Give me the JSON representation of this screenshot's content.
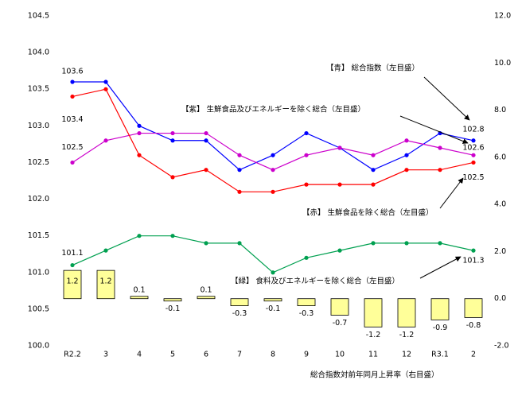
{
  "chart_data": {
    "type": "bar-line",
    "categories": [
      "R2.2",
      "3",
      "4",
      "5",
      "6",
      "7",
      "8",
      "9",
      "10",
      "11",
      "12",
      "R3.1",
      "2"
    ],
    "series": [
      {
        "name": "【青】 総合指数（左目盛）",
        "type": "line",
        "color": "#0000ff",
        "values": [
          103.6,
          103.6,
          103.0,
          102.8,
          102.8,
          102.4,
          102.6,
          102.9,
          102.7,
          102.4,
          102.6,
          102.9,
          102.8
        ]
      },
      {
        "name": "【紫】 生鮮食品及びエネルギーを除く総合（左目盛）",
        "type": "line",
        "color": "#cc00cc",
        "values": [
          102.5,
          102.8,
          102.9,
          102.9,
          102.9,
          102.6,
          102.4,
          102.6,
          102.7,
          102.6,
          102.8,
          102.7,
          102.6
        ]
      },
      {
        "name": "【赤】 生鮮食品を除く総合（左目盛）",
        "type": "line",
        "color": "#ff0000",
        "values": [
          103.4,
          103.5,
          102.6,
          102.3,
          102.4,
          102.1,
          102.1,
          102.2,
          102.2,
          102.2,
          102.4,
          102.4,
          102.5
        ]
      },
      {
        "name": "【緑】 食料及びエネルギーを除く総合（左目盛）",
        "type": "line",
        "color": "#00a050",
        "values": [
          101.1,
          101.3,
          101.5,
          101.5,
          101.4,
          101.4,
          101.0,
          101.2,
          101.3,
          101.4,
          101.4,
          101.4,
          101.3
        ]
      },
      {
        "name": "総合指数対前年同月上昇率（右目盛）",
        "type": "bar",
        "axis": "y2",
        "color": "#ffff99",
        "values": [
          1.2,
          1.2,
          0.1,
          -0.1,
          0.1,
          -0.3,
          -0.1,
          -0.3,
          -0.7,
          -1.2,
          -1.2,
          -0.9,
          -0.8
        ]
      }
    ],
    "ylim": [
      100.0,
      104.5
    ],
    "yticks": [
      {
        "value": 100,
        "label": "100.0"
      },
      100.5,
      {
        "value": 101,
        "label": "101.0"
      },
      101.5,
      {
        "value": 102,
        "label": "102.0"
      },
      102.5,
      {
        "value": 103,
        "label": "103.0"
      },
      103.5,
      {
        "value": 104,
        "label": "104.0"
      },
      104.5
    ],
    "y2lim": [
      -2.0,
      12.0
    ],
    "y2ticks": [
      {
        "value": -2,
        "label": "-2.0"
      },
      {
        "value": 0,
        "label": "0.0"
      },
      {
        "value": 2,
        "label": "2.0"
      },
      {
        "value": 4,
        "label": "4.0"
      },
      {
        "value": 6,
        "label": "6.0"
      },
      {
        "value": 8,
        "label": "8.0"
      },
      {
        "value": 10,
        "label": "10.0"
      },
      {
        "value": 12,
        "label": "12.0"
      }
    ]
  }
}
